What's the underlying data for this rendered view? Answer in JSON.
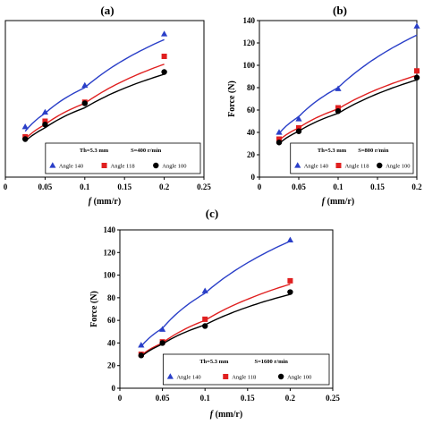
{
  "chart_data": [
    {
      "type": "scatter",
      "panel": "(a)",
      "xlabel": "f (mm/r)",
      "ylabel": "",
      "xlim": [
        0,
        0.25
      ],
      "ylim": [
        0,
        140
      ],
      "xticks": [
        "0",
        "0.05",
        "0.1",
        "0.15",
        "0.2",
        "0.25"
      ],
      "yticks": [],
      "legend": {
        "placement": "bottom-right",
        "header_left": "Th=5.3 mm",
        "header_right": "S=400 r/min"
      },
      "series": [
        {
          "name": "Angle 140",
          "color": "#2a3fc8",
          "marker": "triangle",
          "x": [
            0.025,
            0.05,
            0.1,
            0.2
          ],
          "points": [
            45,
            58,
            82,
            128
          ],
          "fit": [
            41,
            57,
            80,
            123
          ]
        },
        {
          "name": "Angle 118",
          "color": "#e02020",
          "marker": "square",
          "x": [
            0.025,
            0.05,
            0.1,
            0.2
          ],
          "points": [
            36,
            50,
            67,
            108
          ],
          "fit": [
            34,
            47,
            66,
            101
          ]
        },
        {
          "name": "Angle 100",
          "color": "#000000",
          "marker": "circle",
          "x": [
            0.025,
            0.05,
            0.1,
            0.2
          ],
          "points": [
            34,
            47,
            66,
            94
          ],
          "fit": [
            32,
            44,
            62,
            92
          ]
        }
      ]
    },
    {
      "type": "scatter",
      "panel": "(b)",
      "xlabel": "f (mm/r)",
      "ylabel": "Force (N)",
      "xlim": [
        0,
        0.2
      ],
      "ylim": [
        0,
        140
      ],
      "xticks": [
        "0",
        "0.05",
        "0.1",
        "0.15",
        "0.2"
      ],
      "yticks": [
        "0",
        "20",
        "40",
        "60",
        "80",
        "100",
        "120",
        "140"
      ],
      "legend": {
        "placement": "bottom-right",
        "header_left": "Th=5.3 mm",
        "header_right": "S=800 r/min"
      },
      "series": [
        {
          "name": "Angle 140",
          "color": "#2a3fc8",
          "marker": "triangle",
          "x": [
            0.025,
            0.05,
            0.1,
            0.2
          ],
          "points": [
            40,
            52,
            79,
            135
          ],
          "fit": [
            39,
            54,
            80,
            127
          ]
        },
        {
          "name": "Angle 118",
          "color": "#e02020",
          "marker": "square",
          "x": [
            0.025,
            0.05,
            0.1,
            0.2
          ],
          "points": [
            34,
            44,
            62,
            95
          ],
          "fit": [
            33,
            44,
            61,
            91
          ]
        },
        {
          "name": "Angle 100",
          "color": "#000000",
          "marker": "circle",
          "x": [
            0.025,
            0.05,
            0.1,
            0.2
          ],
          "points": [
            31,
            41,
            59,
            89
          ],
          "fit": [
            30,
            41,
            57,
            87
          ]
        }
      ]
    },
    {
      "type": "scatter",
      "panel": "(c)",
      "xlabel": "f (mm/r)",
      "ylabel": "Force (N)",
      "xlim": [
        0,
        0.25
      ],
      "ylim": [
        0,
        140
      ],
      "xticks": [
        "0",
        "0.05",
        "0.1",
        "0.15",
        "0.2",
        "0.25"
      ],
      "yticks": [
        "0",
        "20",
        "40",
        "60",
        "80",
        "100",
        "120",
        "140"
      ],
      "legend": {
        "placement": "bottom-right",
        "header_left": "Th=5.3 mm",
        "header_right": "S=1600 r/min"
      },
      "series": [
        {
          "name": "Angle 140",
          "color": "#2a3fc8",
          "marker": "triangle",
          "x": [
            0.025,
            0.05,
            0.1,
            0.2
          ],
          "points": [
            38,
            52,
            86,
            131
          ],
          "fit": [
            37,
            53,
            84,
            130
          ]
        },
        {
          "name": "Angle 118",
          "color": "#e02020",
          "marker": "square",
          "x": [
            0.025,
            0.05,
            0.1,
            0.2
          ],
          "points": [
            30,
            41,
            61,
            95
          ],
          "fit": [
            29,
            40,
            60,
            92
          ]
        },
        {
          "name": "Angle 100",
          "color": "#000000",
          "marker": "circle",
          "x": [
            0.025,
            0.05,
            0.1,
            0.2
          ],
          "points": [
            29,
            40,
            55,
            85
          ],
          "fit": [
            28,
            39,
            56,
            83
          ]
        }
      ]
    }
  ]
}
